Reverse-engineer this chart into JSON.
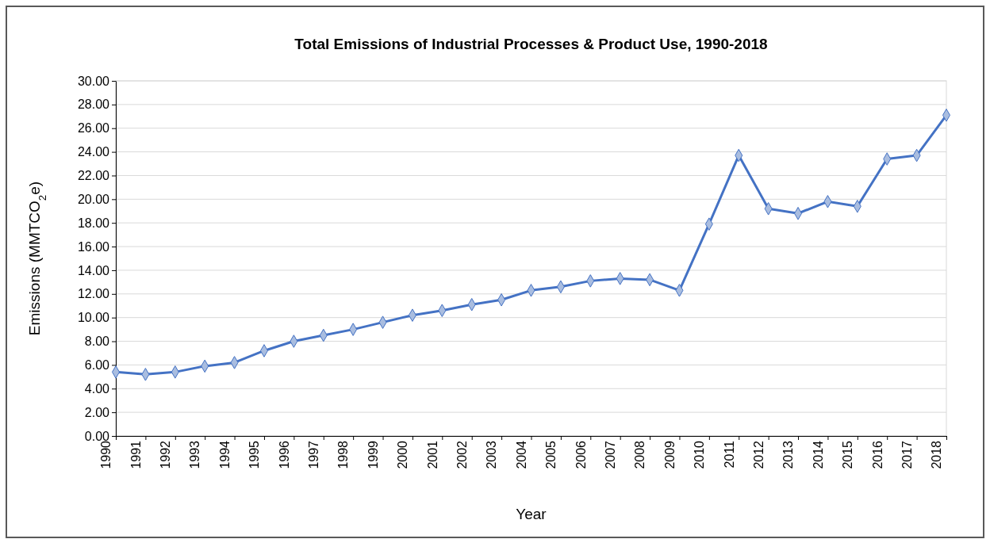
{
  "chart_data": {
    "type": "line",
    "title": "Total Emissions of Industrial Processes & Product Use, 1990-2018",
    "xlabel": "Year",
    "ylabel": "Emissions (MMTCO$_{2}$e)",
    "categories": [
      "1990",
      "1991",
      "1992",
      "1993",
      "1994",
      "1995",
      "1996",
      "1997",
      "1998",
      "1999",
      "2000",
      "2001",
      "2002",
      "2003",
      "2004",
      "2005",
      "2006",
      "2007",
      "2008",
      "2009",
      "2010",
      "2011",
      "2012",
      "2013",
      "2014",
      "2015",
      "2016",
      "2017",
      "2018"
    ],
    "series": [
      {
        "color": "#4472c4",
        "values": [
          5.4,
          5.2,
          5.4,
          5.9,
          6.2,
          7.2,
          8.0,
          8.5,
          9.0,
          9.6,
          10.2,
          10.6,
          11.1,
          11.5,
          12.3,
          12.6,
          13.1,
          13.3,
          13.2,
          12.3,
          17.9,
          23.7,
          19.2,
          18.8,
          19.8,
          19.4,
          23.4,
          23.7,
          27.1
        ]
      }
    ],
    "ylim": [
      0,
      30
    ],
    "yticks": [
      {
        "value": 0,
        "label": "0.00"
      },
      {
        "value": 2,
        "label": "2.00"
      },
      {
        "value": 4,
        "label": "4.00"
      },
      {
        "value": 6,
        "label": "6.00"
      },
      {
        "value": 8,
        "label": "8.00"
      },
      {
        "value": 10,
        "label": "10.00"
      },
      {
        "value": 12,
        "label": "12.00"
      },
      {
        "value": 14,
        "label": "14.00"
      },
      {
        "value": 16,
        "label": "16.00"
      },
      {
        "value": 18,
        "label": "18.00"
      },
      {
        "value": 20,
        "label": "20.00"
      },
      {
        "value": 22,
        "label": "22.00"
      },
      {
        "value": 24,
        "label": "24.00"
      },
      {
        "value": 26,
        "label": "26.00"
      },
      {
        "value": 28,
        "label": "28.00"
      },
      {
        "value": 30,
        "label": "30.00"
      }
    ],
    "grid": "y",
    "legend": false,
    "marker": "diamond",
    "line_style": "solid"
  }
}
